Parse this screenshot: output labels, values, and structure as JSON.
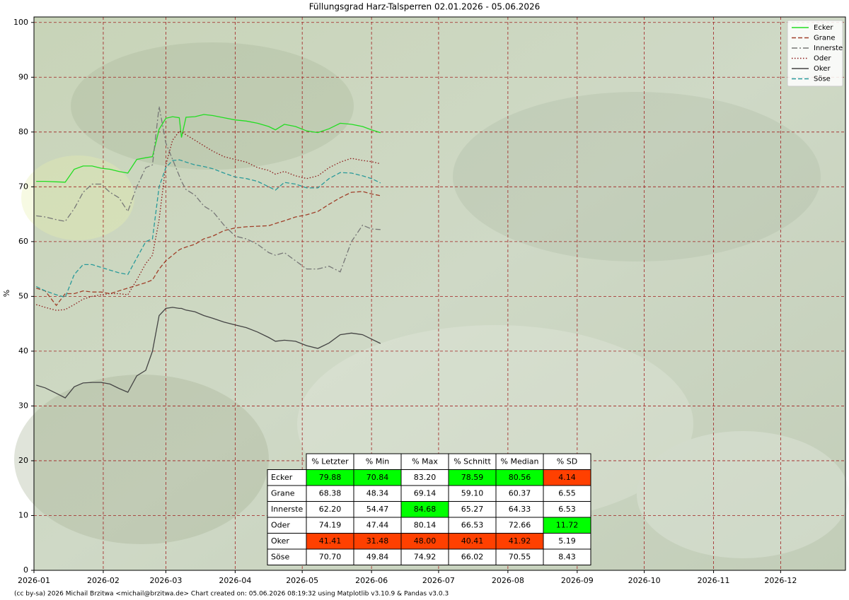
{
  "chart_data": {
    "type": "line",
    "title": "Füllungsgrad Harz-Talsperren 02.01.2026 - 05.06.2026",
    "ylabel": "%",
    "footer": "(cc by-sa) 2026 Michail Brzitwa <michail@brzitwa.de>  Chart created on: 05.06.2026 08:19:32 using Matplotlib v3.10.9 & Pandas v3.0.3",
    "x": [
      1,
      5,
      10,
      14,
      18,
      22,
      26,
      30,
      34,
      38,
      42,
      46,
      50,
      53,
      56,
      59,
      62,
      65,
      66,
      68,
      72,
      76,
      80,
      85,
      90,
      95,
      100,
      105,
      108,
      112,
      117,
      122,
      127,
      132,
      137,
      142,
      147,
      151,
      155
    ],
    "xlim": [
      0,
      363
    ],
    "xticks": [
      {
        "value": 0,
        "label": "2026-01"
      },
      {
        "value": 31,
        "label": "2026-02"
      },
      {
        "value": 59,
        "label": "2026-03"
      },
      {
        "value": 90,
        "label": "2026-04"
      },
      {
        "value": 120,
        "label": "2026-05"
      },
      {
        "value": 151,
        "label": "2026-06"
      },
      {
        "value": 181,
        "label": "2026-07"
      },
      {
        "value": 212,
        "label": "2026-08"
      },
      {
        "value": 243,
        "label": "2026-09"
      },
      {
        "value": 273,
        "label": "2026-10"
      },
      {
        "value": 304,
        "label": "2026-11"
      },
      {
        "value": 334,
        "label": "2026-12"
      }
    ],
    "ylim": [
      0,
      101
    ],
    "yticks": [
      0,
      10,
      20,
      30,
      40,
      50,
      60,
      70,
      80,
      90,
      100
    ],
    "grid": true,
    "legend": "upper right",
    "series": [
      {
        "name": "Ecker",
        "color": "#22dd22",
        "linestyle": "-",
        "values": [
          71.0,
          71.0,
          70.9,
          70.84,
          73.2,
          73.8,
          73.8,
          73.4,
          73.2,
          72.8,
          72.5,
          75.0,
          75.3,
          75.5,
          80.5,
          82.5,
          82.8,
          82.6,
          79.0,
          82.7,
          82.8,
          83.2,
          83.0,
          82.6,
          82.2,
          82.0,
          81.6,
          81.0,
          80.4,
          81.4,
          81.0,
          80.2,
          79.9,
          80.6,
          81.6,
          81.4,
          81.0,
          80.4,
          79.88
        ]
      },
      {
        "name": "Grane",
        "color": "#a0402a",
        "linestyle": "--",
        "values": [
          51.5,
          51.0,
          48.34,
          50.5,
          50.5,
          51.0,
          50.8,
          50.8,
          50.5,
          51.0,
          51.5,
          52.0,
          52.5,
          53.0,
          55.0,
          56.5,
          57.5,
          58.5,
          58.7,
          59.0,
          59.5,
          60.5,
          61.0,
          62.0,
          62.5,
          62.7,
          62.8,
          62.9,
          63.3,
          63.8,
          64.5,
          64.9,
          65.5,
          66.8,
          68.0,
          69.0,
          69.14,
          68.7,
          68.38
        ]
      },
      {
        "name": "Innerste",
        "color": "#777777",
        "linestyle": "-.",
        "values": [
          64.7,
          64.5,
          64.0,
          63.7,
          66.0,
          69.0,
          70.5,
          70.5,
          69.0,
          68.0,
          65.5,
          70.0,
          73.5,
          74.0,
          84.68,
          78.0,
          75.0,
          72.0,
          71.0,
          69.5,
          68.5,
          66.5,
          65.5,
          63.0,
          61.0,
          60.5,
          59.5,
          58.0,
          57.5,
          58.0,
          56.5,
          55.0,
          55.0,
          55.5,
          54.47,
          60.0,
          63.0,
          62.3,
          62.2
        ]
      },
      {
        "name": "Oder",
        "color": "#8b1a1a",
        "linestyle": ":",
        "values": [
          48.5,
          48.0,
          47.44,
          47.6,
          48.5,
          49.5,
          50.0,
          50.3,
          50.5,
          50.5,
          50.3,
          53.0,
          56.0,
          57.5,
          64.0,
          74.0,
          78.5,
          80.14,
          80.0,
          79.5,
          78.5,
          77.5,
          76.5,
          75.5,
          75.0,
          74.5,
          73.5,
          73.0,
          72.3,
          72.8,
          72.0,
          71.5,
          72.0,
          73.5,
          74.5,
          75.2,
          74.8,
          74.6,
          74.19
        ]
      },
      {
        "name": "Oker",
        "color": "#444444",
        "linestyle": "-",
        "values": [
          33.8,
          33.3,
          32.3,
          31.48,
          33.5,
          34.2,
          34.3,
          34.3,
          34.0,
          33.2,
          32.5,
          35.5,
          36.5,
          40.0,
          46.5,
          47.8,
          48.0,
          47.8,
          47.8,
          47.5,
          47.2,
          46.5,
          46.0,
          45.3,
          44.8,
          44.3,
          43.5,
          42.5,
          41.8,
          42.0,
          41.8,
          41.0,
          40.5,
          41.5,
          43.0,
          43.3,
          43.0,
          42.2,
          41.41
        ]
      },
      {
        "name": "Söse",
        "color": "#2a9a9a",
        "linestyle": "--",
        "values": [
          51.8,
          51.0,
          50.3,
          49.84,
          54.0,
          55.8,
          55.8,
          55.3,
          54.8,
          54.3,
          54.0,
          57.0,
          60.0,
          60.5,
          70.0,
          73.5,
          74.8,
          74.92,
          74.8,
          74.5,
          74.0,
          73.7,
          73.3,
          72.5,
          71.8,
          71.5,
          71.0,
          70.0,
          69.4,
          70.8,
          70.5,
          69.8,
          69.8,
          71.5,
          72.6,
          72.5,
          72.0,
          71.5,
          70.7
        ]
      }
    ],
    "table": {
      "columns": [
        "% Letzter",
        "% Min",
        "% Max",
        "% Schnitt",
        "% Median",
        "% SD"
      ],
      "rows": [
        {
          "name": "Ecker",
          "cells": [
            "79.88",
            "70.84",
            "83.20",
            "78.59",
            "80.56",
            "4.14"
          ],
          "colors": [
            "#00ff00",
            "#00ff00",
            "#ffffff",
            "#00ff00",
            "#00ff00",
            "#ff4000"
          ]
        },
        {
          "name": "Grane",
          "cells": [
            "68.38",
            "48.34",
            "69.14",
            "59.10",
            "60.37",
            "6.55"
          ],
          "colors": [
            "#ffffff",
            "#ffffff",
            "#ffffff",
            "#ffffff",
            "#ffffff",
            "#ffffff"
          ]
        },
        {
          "name": "Innerste",
          "cells": [
            "62.20",
            "54.47",
            "84.68",
            "65.27",
            "64.33",
            "6.53"
          ],
          "colors": [
            "#ffffff",
            "#ffffff",
            "#00ff00",
            "#ffffff",
            "#ffffff",
            "#ffffff"
          ]
        },
        {
          "name": "Oder",
          "cells": [
            "74.19",
            "47.44",
            "80.14",
            "66.53",
            "72.66",
            "11.72"
          ],
          "colors": [
            "#ffffff",
            "#ffffff",
            "#ffffff",
            "#ffffff",
            "#ffffff",
            "#00ff00"
          ]
        },
        {
          "name": "Oker",
          "cells": [
            "41.41",
            "31.48",
            "48.00",
            "40.41",
            "41.92",
            "5.19"
          ],
          "colors": [
            "#ff4000",
            "#ff4000",
            "#ff4000",
            "#ff4000",
            "#ff4000",
            "#ffffff"
          ]
        },
        {
          "name": "Söse",
          "cells": [
            "70.70",
            "49.84",
            "74.92",
            "66.02",
            "70.55",
            "8.43"
          ],
          "colors": [
            "#ffffff",
            "#ffffff",
            "#ffffff",
            "#ffffff",
            "#ffffff",
            "#ffffff"
          ]
        }
      ]
    }
  }
}
